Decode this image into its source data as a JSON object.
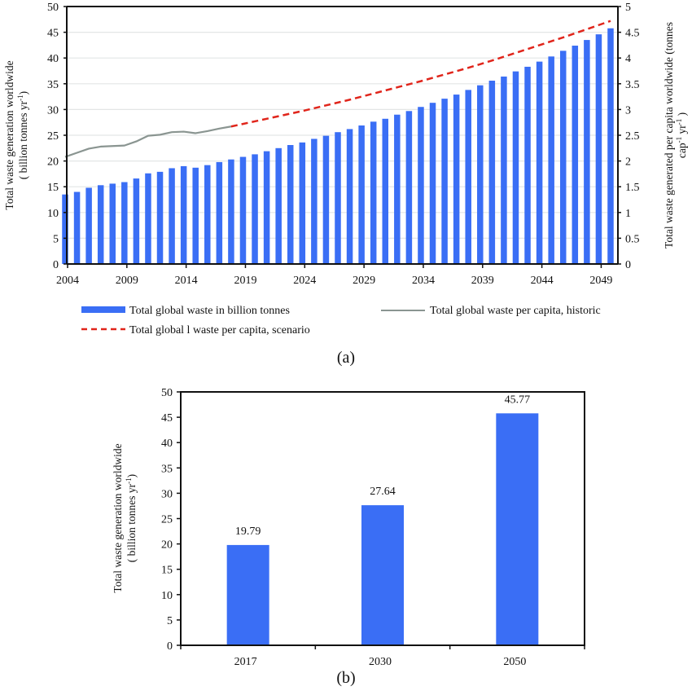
{
  "colors": {
    "bar": "#3a6ef5",
    "historic_line": "#8a9591",
    "scenario_line": "#e0251b",
    "grid": "#e3e6e6",
    "axis": "#111111"
  },
  "chart_data": [
    {
      "id": "a",
      "type": "bar",
      "panel_label": "(a)",
      "title": "",
      "xlabel": "",
      "ylabel": "Total waste generation worldwide",
      "ylabel_line2": "( billion tonnes yr",
      "ylabel_line2_sup": "-1",
      "ylabel_line2_end": ")",
      "y2label": "Total waste  generated per capita worldwide (tonnes",
      "y2label_line2_a": "cap",
      "y2label_line2_sup1": "-1",
      "y2label_line2_b": " yr",
      "y2label_line2_sup2": "-1",
      "y2label_line2_c": " )",
      "ylim": [
        0,
        50
      ],
      "y2lim": [
        0,
        5
      ],
      "yticks": [
        "0",
        "5",
        "10",
        "15",
        "20",
        "25",
        "30",
        "35",
        "40",
        "45",
        "50"
      ],
      "y2ticks": [
        "0",
        "0.5",
        "1",
        "1.5",
        "2",
        "2.5",
        "3",
        "3.5",
        "4",
        "4.5",
        "5"
      ],
      "xticks": [
        "2004",
        "2009",
        "2014",
        "2019",
        "2024",
        "2029",
        "2034",
        "2039",
        "2044",
        "2049"
      ],
      "grid": true,
      "legend_position": "bottom",
      "x": [
        2004,
        2005,
        2006,
        2007,
        2008,
        2009,
        2010,
        2011,
        2012,
        2013,
        2014,
        2015,
        2016,
        2017,
        2018,
        2019,
        2020,
        2021,
        2022,
        2023,
        2024,
        2025,
        2026,
        2027,
        2028,
        2029,
        2030,
        2031,
        2032,
        2033,
        2034,
        2035,
        2036,
        2037,
        2038,
        2039,
        2040,
        2041,
        2042,
        2043,
        2044,
        2045,
        2046,
        2047,
        2048,
        2049,
        2050
      ],
      "series": [
        {
          "name": "Total global waste in billion tonnes",
          "type": "bar",
          "axis": "left",
          "values": [
            13.5,
            14.0,
            14.8,
            15.3,
            15.6,
            15.9,
            16.6,
            17.6,
            17.9,
            18.6,
            19.0,
            18.7,
            19.2,
            19.79,
            20.3,
            20.8,
            21.3,
            21.9,
            22.5,
            23.1,
            23.6,
            24.3,
            24.9,
            25.6,
            26.2,
            26.9,
            27.64,
            28.2,
            29.0,
            29.7,
            30.5,
            31.3,
            32.1,
            32.9,
            33.8,
            34.7,
            35.6,
            36.4,
            37.4,
            38.3,
            39.3,
            40.3,
            41.4,
            42.4,
            43.5,
            44.6,
            45.77
          ]
        },
        {
          "name": "Total global waste per capita, historic",
          "type": "line",
          "axis": "right",
          "x": [
            2004,
            2005,
            2006,
            2007,
            2008,
            2009,
            2010,
            2011,
            2012,
            2013,
            2014,
            2015,
            2016,
            2017,
            2018
          ],
          "values": [
            2.08,
            2.16,
            2.24,
            2.28,
            2.29,
            2.3,
            2.38,
            2.49,
            2.51,
            2.56,
            2.57,
            2.54,
            2.58,
            2.63,
            2.67
          ]
        },
        {
          "name": "Total global l waste per capita, scenario",
          "type": "line-dashed",
          "axis": "right",
          "x": [
            2018,
            2020,
            2022,
            2024,
            2026,
            2028,
            2030,
            2032,
            2034,
            2036,
            2038,
            2040,
            2042,
            2044,
            2046,
            2048,
            2050
          ],
          "values": [
            2.67,
            2.77,
            2.87,
            2.97,
            3.08,
            3.19,
            3.31,
            3.43,
            3.55,
            3.68,
            3.81,
            3.95,
            4.1,
            4.25,
            4.4,
            4.56,
            4.72
          ]
        }
      ]
    },
    {
      "id": "b",
      "type": "bar",
      "panel_label": "(b)",
      "title": "",
      "xlabel": "",
      "ylabel": "Total waste generation worldwide",
      "ylabel_line2": "( billion tonnes yr",
      "ylabel_line2_sup": "-1",
      "ylabel_line2_end": ")",
      "ylim": [
        0,
        50
      ],
      "yticks": [
        "0",
        "5",
        "10",
        "15",
        "20",
        "25",
        "30",
        "35",
        "40",
        "45",
        "50"
      ],
      "grid": false,
      "categories": [
        "2017",
        "2030",
        "2050"
      ],
      "values": [
        19.79,
        27.64,
        45.77
      ],
      "data_labels": [
        "19.79",
        "27.64",
        "45.77"
      ]
    }
  ]
}
